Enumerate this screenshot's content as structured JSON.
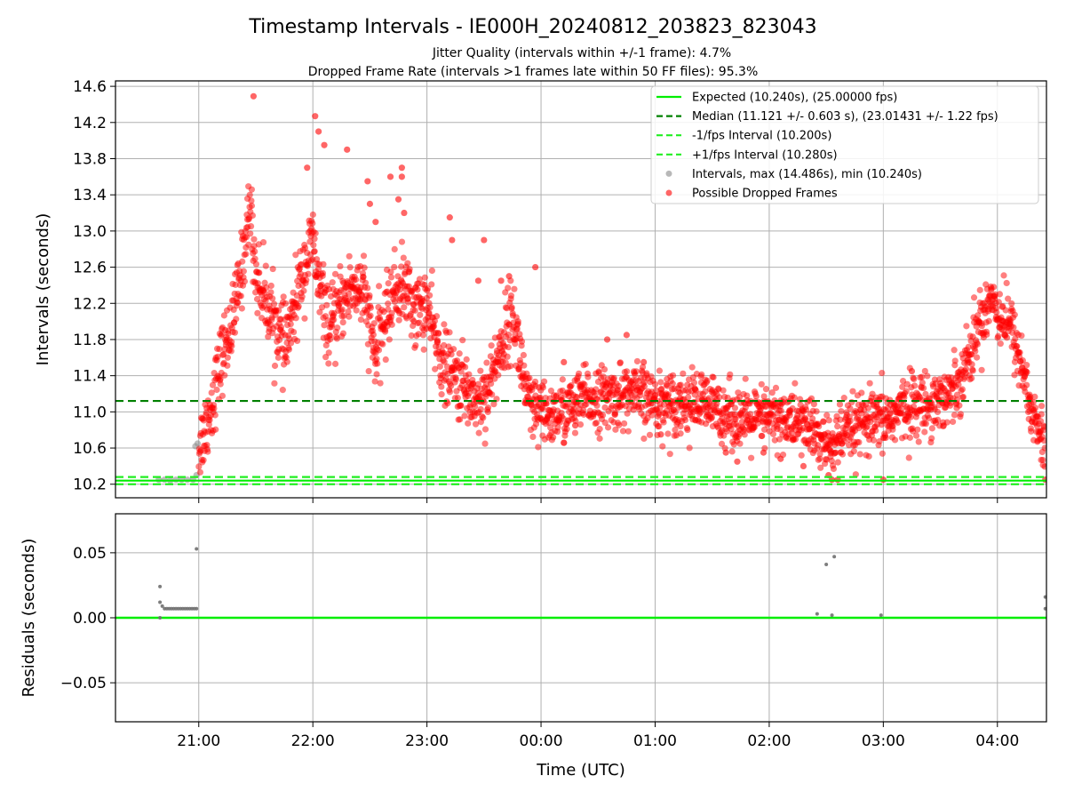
{
  "title": "Timestamp Intervals - IE000H_20240812_203823_823043",
  "subtitles": [
    "Jitter Quality (intervals within +/-1 frame): 4.7%",
    "Dropped Frame Rate (intervals >1 frames late within 50 FF files): 95.3%"
  ],
  "colors": {
    "expected": "#00ee00",
    "median": "#008000",
    "fps_interval": "#22ee22",
    "intervals": "#888888",
    "dropped": "#ff0000",
    "grid": "#b0b0b0"
  },
  "chart_data": [
    {
      "type": "scatter",
      "panel": "intervals",
      "ylabel": "Intervals (seconds)",
      "xlabel": "",
      "x_ticks": [
        "21:00",
        "22:00",
        "23:00",
        "00:00",
        "01:00",
        "02:00",
        "03:00",
        "04:00"
      ],
      "x_range_hours": [
        -0.73,
        7.43
      ],
      "ylim": [
        10.05,
        14.66
      ],
      "y_ticks": [
        10.2,
        10.6,
        11.0,
        11.4,
        11.8,
        12.2,
        12.6,
        13.0,
        13.4,
        13.8,
        14.2,
        14.6
      ],
      "grid": true,
      "legend_position": "top-right",
      "reference_lines": [
        {
          "name": "Expected (10.240s), (25.00000 fps)",
          "y": 10.24,
          "style": "solid"
        },
        {
          "name": "Median (11.121 +/- 0.603 s), (23.01431 +/- 1.22 fps)",
          "y": 11.121,
          "style": "dashed"
        },
        {
          "name": "-1/fps Interval (10.200s)",
          "y": 10.2,
          "style": "dashed"
        },
        {
          "name": "+1/fps Interval (10.280s)",
          "y": 10.28,
          "style": "dashed"
        }
      ],
      "series": [
        {
          "name": "Intervals, max (14.486s), min (10.240s)",
          "marker": "circle",
          "points": [
            [
              -0.35,
              10.25
            ],
            [
              -0.3,
              10.25
            ],
            [
              -0.25,
              10.24
            ],
            [
              -0.2,
              10.25
            ],
            [
              -0.15,
              10.25
            ],
            [
              -0.1,
              10.25
            ],
            [
              -0.05,
              10.25
            ],
            [
              -0.02,
              10.3
            ],
            [
              -0.03,
              10.62
            ],
            [
              -0.01,
              10.65
            ]
          ]
        },
        {
          "name": "Possible Dropped Frames",
          "marker": "circle",
          "trend": [
            [
              0.0,
              10.6
            ],
            [
              0.1,
              11.0
            ],
            [
              0.2,
              11.6
            ],
            [
              0.3,
              12.0
            ],
            [
              0.38,
              12.6
            ],
            [
              0.45,
              13.3
            ],
            [
              0.5,
              12.5
            ],
            [
              0.6,
              12.2
            ],
            [
              0.7,
              11.9
            ],
            [
              0.75,
              11.7
            ],
            [
              0.82,
              12.0
            ],
            [
              0.9,
              12.5
            ],
            [
              1.0,
              12.9
            ],
            [
              1.05,
              12.4
            ],
            [
              1.15,
              11.9
            ],
            [
              1.25,
              12.2
            ],
            [
              1.35,
              12.4
            ],
            [
              1.45,
              12.3
            ],
            [
              1.55,
              11.6
            ],
            [
              1.6,
              11.9
            ],
            [
              1.7,
              12.3
            ],
            [
              1.8,
              12.4
            ],
            [
              1.9,
              12.1
            ],
            [
              2.0,
              12.2
            ],
            [
              2.05,
              11.9
            ],
            [
              2.15,
              11.5
            ],
            [
              2.3,
              11.3
            ],
            [
              2.45,
              11.1
            ],
            [
              2.55,
              11.3
            ],
            [
              2.65,
              11.7
            ],
            [
              2.75,
              12.1
            ],
            [
              2.82,
              11.6
            ],
            [
              2.9,
              11.0
            ],
            [
              3.05,
              10.95
            ],
            [
              3.2,
              11.0
            ],
            [
              3.4,
              11.15
            ],
            [
              3.6,
              11.15
            ],
            [
              3.8,
              11.2
            ],
            [
              4.0,
              11.1
            ],
            [
              4.2,
              11.1
            ],
            [
              4.4,
              11.1
            ],
            [
              4.6,
              11.0
            ],
            [
              4.8,
              10.9
            ],
            [
              5.0,
              10.95
            ],
            [
              5.2,
              10.9
            ],
            [
              5.35,
              10.85
            ],
            [
              5.5,
              10.6
            ],
            [
              5.6,
              10.7
            ],
            [
              5.8,
              10.85
            ],
            [
              6.0,
              10.9
            ],
            [
              6.2,
              11.05
            ],
            [
              6.4,
              11.1
            ],
            [
              6.6,
              11.2
            ],
            [
              6.75,
              11.6
            ],
            [
              6.85,
              12.0
            ],
            [
              6.95,
              12.3
            ],
            [
              7.0,
              12.1
            ],
            [
              7.1,
              12.0
            ],
            [
              7.2,
              11.6
            ],
            [
              7.3,
              11.0
            ],
            [
              7.42,
              10.6
            ]
          ],
          "outliers": [
            [
              0.48,
              14.49
            ],
            [
              0.95,
              13.7
            ],
            [
              1.02,
              14.27
            ],
            [
              1.05,
              14.1
            ],
            [
              1.1,
              13.95
            ],
            [
              1.3,
              13.9
            ],
            [
              1.48,
              13.55
            ],
            [
              1.5,
              13.3
            ],
            [
              1.55,
              13.1
            ],
            [
              1.68,
              13.6
            ],
            [
              1.78,
              13.7
            ],
            [
              1.78,
              13.6
            ],
            [
              1.75,
              13.35
            ],
            [
              1.8,
              13.2
            ],
            [
              2.2,
              13.15
            ],
            [
              2.22,
              12.9
            ],
            [
              2.45,
              12.45
            ],
            [
              2.5,
              12.9
            ],
            [
              2.65,
              12.45
            ],
            [
              2.72,
              12.5
            ],
            [
              2.95,
              12.6
            ],
            [
              3.2,
              11.55
            ],
            [
              3.3,
              10.85
            ],
            [
              3.58,
              11.8
            ],
            [
              3.75,
              11.85
            ],
            [
              3.9,
              11.55
            ],
            [
              4.05,
              10.75
            ],
            [
              4.1,
              11.3
            ],
            [
              4.15,
              11.25
            ],
            [
              4.22,
              11.15
            ],
            [
              4.35,
              11.25
            ],
            [
              4.45,
              10.95
            ],
            [
              4.62,
              10.55
            ],
            [
              4.72,
              10.45
            ],
            [
              4.95,
              10.55
            ],
            [
              5.1,
              10.48
            ],
            [
              5.3,
              10.4
            ],
            [
              5.52,
              10.3
            ],
            [
              5.55,
              10.25
            ],
            [
              5.6,
              10.25
            ],
            [
              6.0,
              10.25
            ],
            [
              6.25,
              11.45
            ],
            [
              7.28,
              11.15
            ],
            [
              7.38,
              10.7
            ],
            [
              7.42,
              10.25
            ]
          ]
        }
      ]
    },
    {
      "type": "scatter",
      "panel": "residuals",
      "ylabel": "Residuals (seconds)",
      "xlabel": "Time (UTC)",
      "x_ticks": [
        "21:00",
        "22:00",
        "23:00",
        "00:00",
        "01:00",
        "02:00",
        "03:00",
        "04:00"
      ],
      "x_range_hours": [
        -0.73,
        7.43
      ],
      "ylim": [
        -0.08,
        0.08
      ],
      "y_ticks": [
        0.05,
        0.0,
        -0.05
      ],
      "y_tick_labels": [
        "0.05",
        "0.00",
        "−0.05"
      ],
      "grid": true,
      "reference_lines": [
        {
          "y": 0.0,
          "style": "solid"
        }
      ],
      "series": [
        {
          "marker": "circle",
          "points": [
            [
              -0.34,
              0.024
            ],
            [
              -0.34,
              0.012
            ],
            [
              -0.34,
              0.0
            ],
            [
              -0.32,
              0.009
            ],
            [
              -0.3,
              0.007
            ],
            [
              -0.28,
              0.007
            ],
            [
              -0.26,
              0.007
            ],
            [
              -0.24,
              0.007
            ],
            [
              -0.22,
              0.007
            ],
            [
              -0.2,
              0.007
            ],
            [
              -0.18,
              0.007
            ],
            [
              -0.16,
              0.007
            ],
            [
              -0.14,
              0.007
            ],
            [
              -0.12,
              0.007
            ],
            [
              -0.1,
              0.007
            ],
            [
              -0.08,
              0.007
            ],
            [
              -0.06,
              0.007
            ],
            [
              -0.04,
              0.007
            ],
            [
              -0.02,
              0.007
            ],
            [
              -0.02,
              0.053
            ],
            [
              5.42,
              0.003
            ],
            [
              5.5,
              0.041
            ],
            [
              5.55,
              0.002
            ],
            [
              5.57,
              0.047
            ],
            [
              5.98,
              0.002
            ],
            [
              7.42,
              0.016
            ],
            [
              7.42,
              0.007
            ]
          ]
        }
      ]
    }
  ]
}
